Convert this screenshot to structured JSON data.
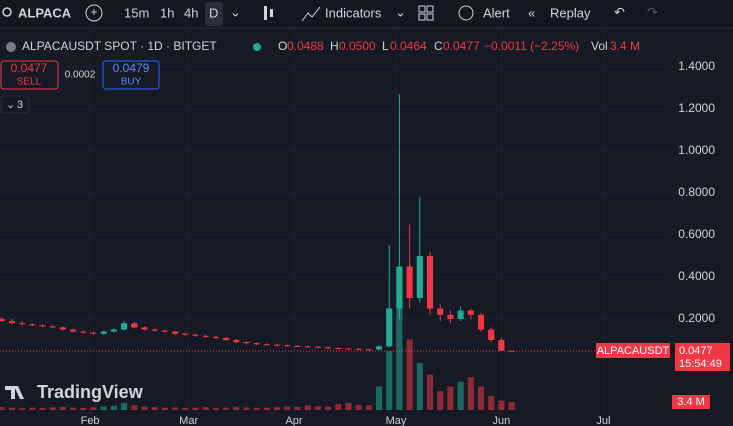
{
  "toolbar": {
    "symbol": "ALPACAUSDT",
    "intervals": [
      "15m",
      "1h",
      "4h",
      "D"
    ],
    "indicators": "Indicators",
    "alert": "Alert",
    "replay": "Replay"
  },
  "legend": {
    "title": "ALPACAUSDT SPOT · 1D · BITGET",
    "o_label": "O",
    "o": "0.0488",
    "h_label": "H",
    "h": "0.0500",
    "l_label": "L",
    "l": "0.0464",
    "c_label": "C",
    "c": "0.0477",
    "change": "−0.0011 (−2.25%)",
    "vol_label": "Vol",
    "vol": "3.4 M"
  },
  "trade": {
    "sell_price": "0.0477",
    "sell": "SELL",
    "spread": "0.0002",
    "buy_price": "0.0479",
    "buy": "BUY",
    "collapsed": "3"
  },
  "watermark": "TradingView",
  "chart_data": {
    "type": "candlestick",
    "up_color": "#22ab94",
    "down_color": "#f23645",
    "x": [
      6,
      9,
      12,
      15,
      18,
      21,
      24,
      27,
      30,
      33,
      36,
      39,
      42,
      45,
      48,
      51,
      54,
      57,
      60,
      63,
      66,
      69,
      72,
      75,
      78,
      81,
      84,
      87,
      90,
      93,
      96,
      99,
      102,
      105,
      108,
      111,
      114,
      117,
      120,
      123,
      126,
      129,
      132,
      135,
      138,
      141,
      144,
      147,
      150,
      153,
      156
    ],
    "open": [
      0.2,
      0.19,
      0.18,
      0.175,
      0.17,
      0.165,
      0.16,
      0.15,
      0.14,
      0.135,
      0.13,
      0.14,
      0.15,
      0.18,
      0.16,
      0.15,
      0.145,
      0.14,
      0.13,
      0.125,
      0.12,
      0.115,
      0.11,
      0.1,
      0.09,
      0.085,
      0.08,
      0.078,
      0.075,
      0.072,
      0.07,
      0.068,
      0.065,
      0.062,
      0.06,
      0.058,
      0.056,
      0.055,
      0.07,
      0.25,
      0.45,
      0.3,
      0.5,
      0.25,
      0.22,
      0.2,
      0.24,
      0.22,
      0.15,
      0.1,
      0.0488
    ],
    "high": [
      0.21,
      0.2,
      0.19,
      0.18,
      0.175,
      0.17,
      0.165,
      0.155,
      0.145,
      0.14,
      0.145,
      0.155,
      0.19,
      0.185,
      0.165,
      0.155,
      0.15,
      0.145,
      0.135,
      0.13,
      0.125,
      0.12,
      0.115,
      0.105,
      0.095,
      0.09,
      0.085,
      0.082,
      0.078,
      0.075,
      0.073,
      0.07,
      0.068,
      0.065,
      0.062,
      0.06,
      0.058,
      0.075,
      0.55,
      1.27,
      0.65,
      0.78,
      0.52,
      0.27,
      0.24,
      0.26,
      0.25,
      0.23,
      0.16,
      0.11,
      0.05
    ],
    "low": [
      0.185,
      0.175,
      0.17,
      0.165,
      0.16,
      0.155,
      0.145,
      0.135,
      0.13,
      0.125,
      0.125,
      0.135,
      0.145,
      0.155,
      0.145,
      0.14,
      0.135,
      0.125,
      0.12,
      0.115,
      0.11,
      0.105,
      0.095,
      0.085,
      0.08,
      0.075,
      0.074,
      0.07,
      0.068,
      0.066,
      0.064,
      0.06,
      0.058,
      0.056,
      0.054,
      0.052,
      0.05,
      0.052,
      0.065,
      0.2,
      0.25,
      0.28,
      0.22,
      0.19,
      0.18,
      0.19,
      0.2,
      0.14,
      0.09,
      0.06,
      0.0464
    ],
    "close": [
      0.19,
      0.18,
      0.175,
      0.17,
      0.165,
      0.16,
      0.15,
      0.14,
      0.135,
      0.13,
      0.14,
      0.15,
      0.18,
      0.16,
      0.15,
      0.145,
      0.14,
      0.13,
      0.125,
      0.12,
      0.115,
      0.11,
      0.1,
      0.09,
      0.085,
      0.08,
      0.078,
      0.075,
      0.072,
      0.07,
      0.068,
      0.065,
      0.062,
      0.06,
      0.058,
      0.056,
      0.055,
      0.07,
      0.25,
      0.45,
      0.3,
      0.5,
      0.25,
      0.22,
      0.2,
      0.24,
      0.22,
      0.15,
      0.1,
      0.0488,
      0.0477
    ],
    "volume": [
      1.2,
      1,
      0.8,
      1,
      0.9,
      1.1,
      1.3,
      1,
      0.9,
      1.2,
      1.5,
      1.8,
      3,
      2,
      1.4,
      1.2,
      1,
      1.1,
      0.9,
      1,
      1.2,
      0.8,
      1,
      1.4,
      1.1,
      0.9,
      1,
      1.2,
      1.5,
      1.3,
      2,
      1.6,
      1.4,
      2.5,
      3,
      2.2,
      2,
      10,
      25,
      51,
      30,
      20,
      15,
      8,
      10,
      12,
      14,
      10,
      6,
      4,
      3.4
    ],
    "xlim": [
      5.5,
      202.6
    ],
    "xticks": [
      {
        "value": 32,
        "label": "Feb"
      },
      {
        "value": 61,
        "label": "Mar"
      },
      {
        "value": 92,
        "label": "Apr"
      },
      {
        "value": 122,
        "label": "May"
      },
      {
        "value": 153,
        "label": "Jun"
      },
      {
        "value": 183,
        "label": "Jul"
      }
    ],
    "ylim": [
      -0.257,
      1.576
    ],
    "yticks": [
      {
        "value": 0.2,
        "label": "0.2000"
      },
      {
        "value": 0.4,
        "label": "0.4000"
      },
      {
        "value": 0.6,
        "label": "0.6000"
      },
      {
        "value": 0.8,
        "label": "0.8000"
      },
      {
        "value": 1,
        "label": "1.0000"
      },
      {
        "value": 1.2,
        "label": "1.2000"
      },
      {
        "value": 1.4,
        "label": "1.4000"
      }
    ],
    "vlim": [
      0,
      51
    ],
    "last_symbol": "ALPACAUSDT",
    "last_price": "0.0477",
    "countdown": "15:54:49",
    "last_volume": "3.4 M"
  }
}
